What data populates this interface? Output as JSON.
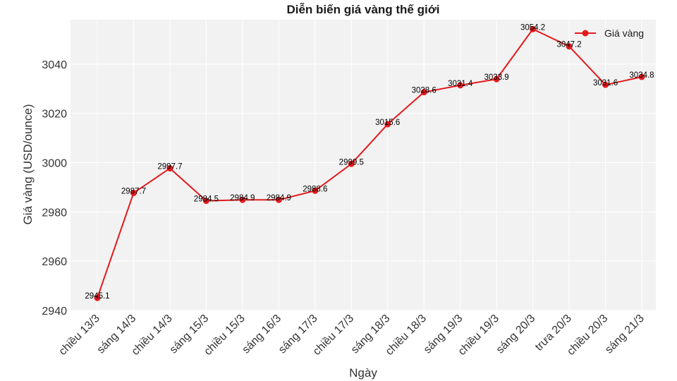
{
  "chart_data": {
    "type": "line",
    "title": "Diễn biến giá vàng thế giới",
    "xlabel": "Ngày",
    "ylabel": "Giá vàng (USD/ounce)",
    "ylim": [
      2940,
      3058
    ],
    "yticks": [
      2940,
      2960,
      2980,
      3000,
      3020,
      3040
    ],
    "grid": true,
    "legend_position": "top-right",
    "categories": [
      "chiều 13/3",
      "sáng 14/3",
      "chiều 14/3",
      "sáng 15/3",
      "chiều 15/3",
      "sáng 16/3",
      "sáng 17/3",
      "chiều 17/3",
      "sáng 18/3",
      "chiều 18/3",
      "sáng 19/3",
      "chiều 19/3",
      "sáng 20/3",
      "trưa 20/3",
      "chiều 20/3",
      "sáng 21/3"
    ],
    "series": [
      {
        "name": "Giá vàng",
        "color": "#e31a1c",
        "values": [
          2945.1,
          2987.7,
          2997.7,
          2984.5,
          2984.9,
          2984.9,
          2988.6,
          2999.5,
          3015.6,
          3028.6,
          3031.4,
          3033.9,
          3054.2,
          3047.2,
          3031.6,
          3034.8
        ],
        "labels": [
          "2945.1",
          "2987.7",
          "2997.7",
          "2984.5",
          "2984.9",
          "2984.9",
          "2988.6",
          "2999.5",
          "3015.6",
          "3028.6",
          "3031.4",
          "3033.9",
          "3054.2",
          "3047.2",
          "3031.6",
          "3034.8"
        ]
      }
    ]
  }
}
